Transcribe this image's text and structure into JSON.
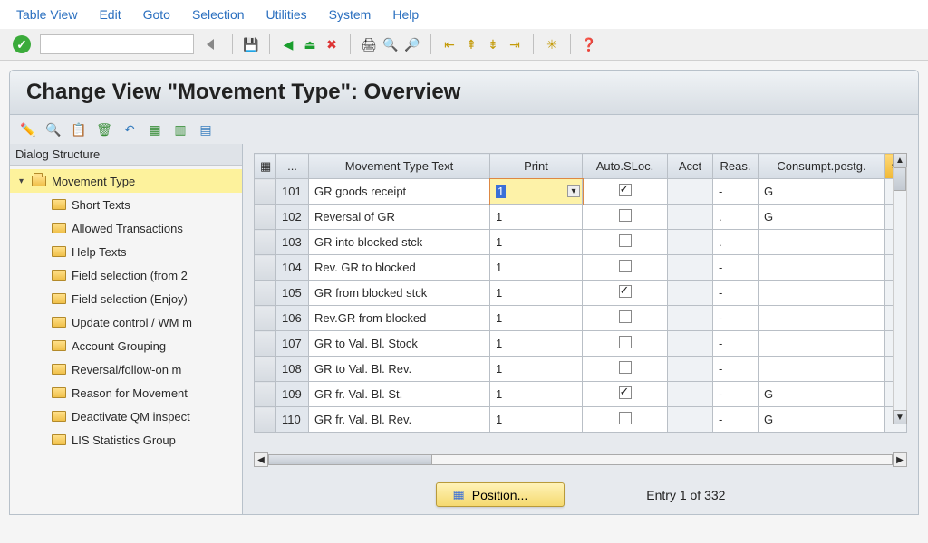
{
  "menu": [
    "Table View",
    "Edit",
    "Goto",
    "Selection",
    "Utilities",
    "System",
    "Help"
  ],
  "toolbar_tips": {
    "enter": "Enter",
    "save": "Save",
    "back": "Back",
    "exit": "Exit",
    "cancel": "Cancel",
    "print": "Print",
    "find": "Find",
    "findnext": "Find Next",
    "first": "First Page",
    "prev": "Previous Page",
    "next": "Next Page",
    "last": "Last Page",
    "newsession": "Create New Session",
    "help": "Help"
  },
  "page_title": "Change View \"Movement Type\": Overview",
  "tree_header": "Dialog Structure",
  "tree_root": "Movement Type",
  "tree_children": [
    "Short Texts",
    "Allowed Transactions",
    "Help Texts",
    "Field selection (from 2",
    "Field selection (Enjoy)",
    "Update control / WM m",
    "Account Grouping",
    "Reversal/follow-on m",
    "Reason for Movement",
    "Deactivate QM inspect",
    "LIS Statistics Group"
  ],
  "table": {
    "columns": {
      "rowsel_icon": "▦",
      "ellipsis": "...",
      "mvttxt": "Movement Type Text",
      "print": "Print",
      "autosloc": "Auto.SLoc.",
      "acct": "Acct",
      "reas": "Reas.",
      "consumpt": "Consumpt.postg."
    },
    "active_value": "1",
    "rows": [
      {
        "num": "101",
        "text": "GR goods receipt",
        "print": "1",
        "auto": true,
        "acct": "",
        "reas": "-",
        "cons": "G",
        "active": true
      },
      {
        "num": "102",
        "text": "Reversal of GR",
        "print": "1",
        "auto": false,
        "acct": "",
        "reas": ".",
        "cons": "G"
      },
      {
        "num": "103",
        "text": "GR into blocked stck",
        "print": "1",
        "auto": false,
        "acct": "",
        "reas": ".",
        "cons": ""
      },
      {
        "num": "104",
        "text": "Rev. GR to blocked",
        "print": "1",
        "auto": false,
        "acct": "",
        "reas": "-",
        "cons": ""
      },
      {
        "num": "105",
        "text": "GR from blocked stck",
        "print": "1",
        "auto": true,
        "acct": "",
        "reas": "-",
        "cons": ""
      },
      {
        "num": "106",
        "text": "Rev.GR from blocked",
        "print": "1",
        "auto": false,
        "acct": "",
        "reas": "-",
        "cons": ""
      },
      {
        "num": "107",
        "text": "GR to Val. Bl. Stock",
        "print": "1",
        "auto": false,
        "acct": "",
        "reas": "-",
        "cons": ""
      },
      {
        "num": "108",
        "text": "GR to Val. Bl. Rev.",
        "print": "1",
        "auto": false,
        "acct": "",
        "reas": "-",
        "cons": ""
      },
      {
        "num": "109",
        "text": "GR fr. Val. Bl. St.",
        "print": "1",
        "auto": true,
        "acct": "",
        "reas": "-",
        "cons": "G"
      },
      {
        "num": "110",
        "text": "GR fr. Val. Bl. Rev.",
        "print": "1",
        "auto": false,
        "acct": "",
        "reas": "-",
        "cons": "G"
      }
    ]
  },
  "position_label": "Position...",
  "entry_info": "Entry 1 of 332",
  "colors": {
    "highlight_bg": "#fdf29c",
    "header_grad_top": "#eaeef3",
    "header_grad_bottom": "#d6dde5"
  }
}
